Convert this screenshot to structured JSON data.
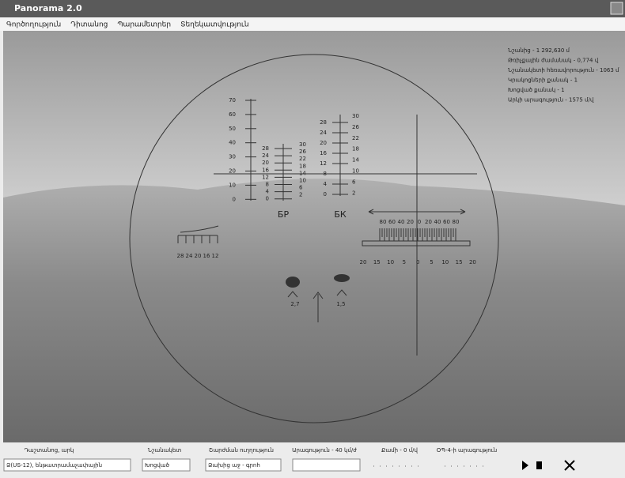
{
  "window": {
    "title": "Panorama 2.0"
  },
  "menu": [
    "Գործողություն",
    "Դիտանոց",
    "Պարամետրեր",
    "Տեղեկատվություն"
  ],
  "info": [
    "Նշանից - 1 292,630 մ",
    "Թռիչքային ժամանակ - 0,774 վ",
    "Նշանակետի հեռավորություն - 1063 մ",
    "Կրակոցների քանակ - 1",
    "Խոցված քանակ - 1",
    "Արկի արագություն - 1575 մ/վ"
  ],
  "reticle": {
    "range_scale": [
      "70",
      "60",
      "50",
      "40",
      "30",
      "20",
      "10",
      "0"
    ],
    "br_left": [
      "28",
      "24",
      "20",
      "16",
      "12",
      "8",
      "4",
      "0"
    ],
    "br_right": [
      "30",
      "26",
      "22",
      "18",
      "14",
      "10",
      "6",
      "2"
    ],
    "bk_left": [
      "28",
      "24",
      "20",
      "16",
      "12",
      "8",
      "4",
      "0"
    ],
    "bk_right": [
      "30",
      "26",
      "22",
      "18",
      "14",
      "10",
      "6",
      "2"
    ],
    "br_label": "БР",
    "bk_label": "БК",
    "lead_scale": [
      "28",
      "24",
      "20",
      "16",
      "12"
    ],
    "wind_top": [
      "80",
      "60",
      "40",
      "20",
      "0",
      "20",
      "40",
      "60",
      "80"
    ],
    "wind_bottom": [
      "20",
      "15",
      "10",
      "5",
      "0",
      "5",
      "10",
      "15",
      "20"
    ],
    "targets": [
      "2,7",
      "1,5"
    ]
  },
  "controls": {
    "labels": [
      "Դաշտանոց, արկ",
      "Նշանակետ",
      "Շարժման ուղղություն",
      "Արագություն - 40 կմ/ժ",
      "Քամի - 0 մ/վ",
      "ՕՊ-4-ի արագություն"
    ],
    "selects": [
      "Ձ(ՍՏ-12), ենթատրամաչափային",
      "Խոցված",
      "Ձախից աջ - գրոհ"
    ]
  }
}
